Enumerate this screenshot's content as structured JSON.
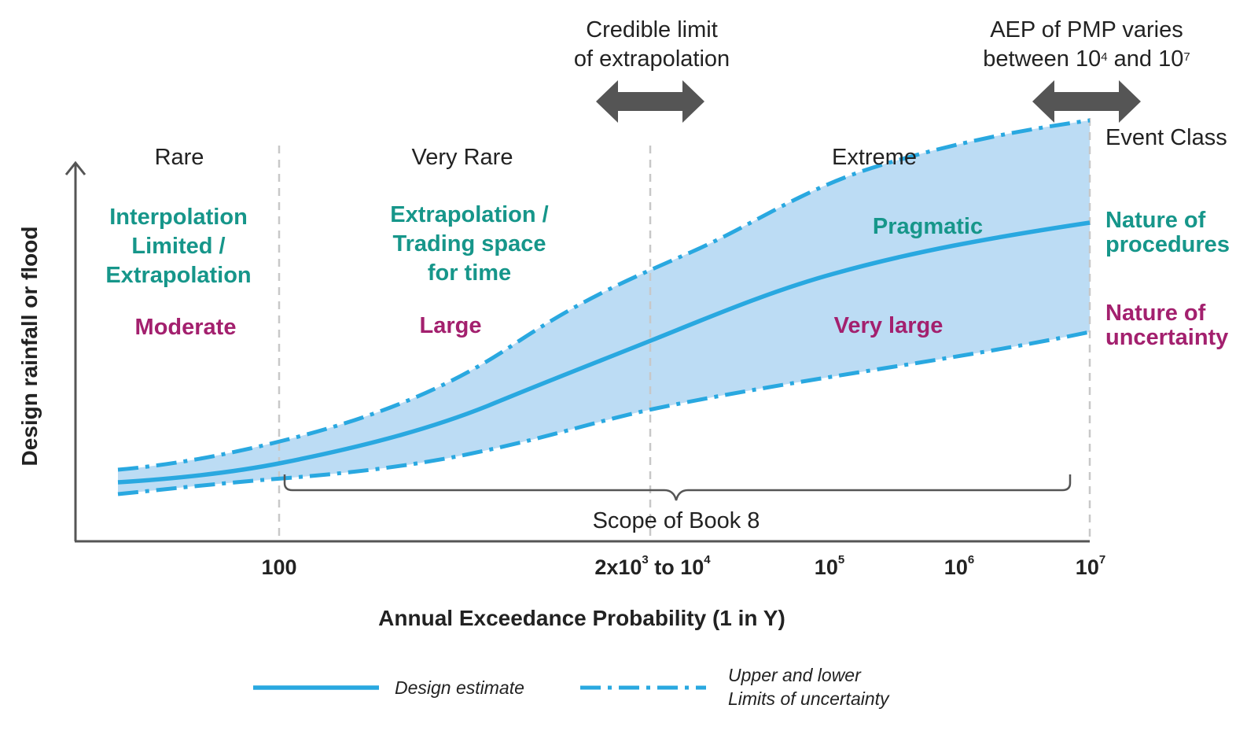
{
  "top_annotations": {
    "credible_line1": "Credible limit",
    "credible_line2": "of extrapolation",
    "aep_line1": "AEP of PMP varies",
    "aep_line2_prefix": "between 10",
    "aep_line2_exp1": "4",
    "aep_line2_mid": " and 10",
    "aep_line2_exp2": "7"
  },
  "event_class": {
    "label": "Event Class",
    "rare": "Rare",
    "very_rare": "Very Rare",
    "extreme": "Extreme"
  },
  "procedures": {
    "side_line1": "Nature of",
    "side_line2": "procedures",
    "rare_line1": "Interpolation",
    "rare_line2": "Limited /",
    "rare_line3": "Extrapolation",
    "very_rare_line1": "Extrapolation /",
    "very_rare_line2": "Trading space",
    "very_rare_line3": "for time",
    "extreme": "Pragmatic"
  },
  "uncertainty": {
    "side_line1": "Nature of",
    "side_line2": "uncertainty",
    "rare": "Moderate",
    "very_rare": "Large",
    "extreme": "Very large"
  },
  "scope_label": "Scope of Book 8",
  "axes": {
    "y_label": "Design rainfall or flood",
    "x_label": "Annual Exceedance Probability (1 in Y)",
    "ticks": {
      "t100": "100",
      "t2k_prefix": "2x10",
      "t2k_exp": "3",
      "t2k_mid": " to 10",
      "t2k_exp2": "4",
      "t1e5_base": "10",
      "t1e5_exp": "5",
      "t1e6_base": "10",
      "t1e6_exp": "6",
      "t1e7_base": "10",
      "t1e7_exp": "7"
    }
  },
  "legend": {
    "design_estimate": "Design estimate",
    "limits_line1": "Upper and lower",
    "limits_line2": "Limits of uncertainty"
  },
  "colors": {
    "curve": "#29a8e0",
    "band": "#bcdcf4",
    "teal": "#16968a",
    "magenta": "#a3206e",
    "arrow": "#555555",
    "axis": "#555555",
    "divider": "#c8c8c8"
  }
}
